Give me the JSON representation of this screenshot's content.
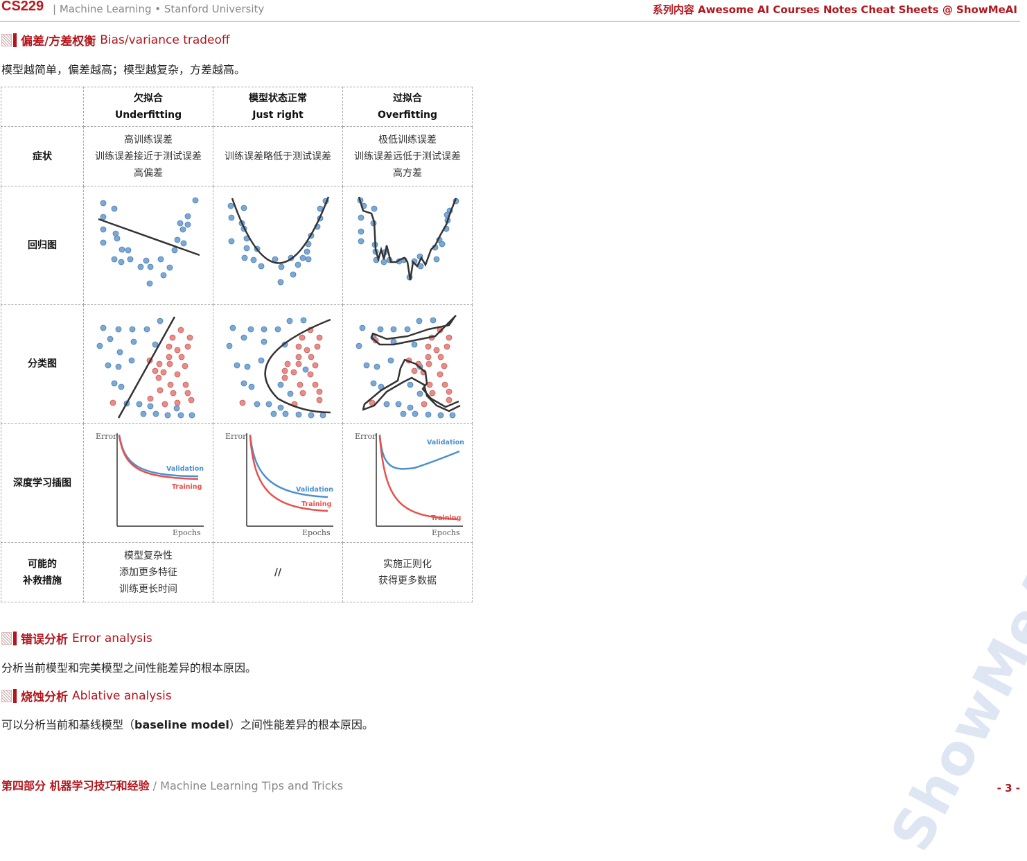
{
  "header": {
    "logo": "CS229",
    "subtitle": "| Machine Learning • Stanford University",
    "series": "系列内容  Awesome AI Courses Notes Cheat Sheets @ ShowMeAI"
  },
  "section1": {
    "title_cn": "偏差/方差权衡",
    "title_en": "Bias/variance tradeoff",
    "desc": "模型越简单，偏差越高；模型越复杂，方差越高。"
  },
  "table": {
    "columns": [
      {
        "cn": "欠拟合",
        "en": "Underfitting"
      },
      {
        "cn": "模型状态正常",
        "en": "Just right"
      },
      {
        "cn": "过拟合",
        "en": "Overfitting"
      }
    ],
    "rows": {
      "symptoms": {
        "label": "症状",
        "under": [
          "高训练误差",
          "训练误差接近于测试误差",
          "高偏差"
        ],
        "right": [
          "训练误差略低于测试误差"
        ],
        "over": [
          "极低训练误差",
          "训练误差远低于测试误差",
          "高方差"
        ]
      },
      "regression": {
        "label": "回归图"
      },
      "classification": {
        "label": "分类图"
      },
      "deep": {
        "label": "深度学习插图"
      },
      "remedies": {
        "label_line1": "可能的",
        "label_line2": "补救措施",
        "under": [
          "模型复杂性",
          "添加更多特征",
          "训练更长时间"
        ],
        "right": [
          "//"
        ],
        "over": [
          "实施正则化",
          "获得更多数据"
        ]
      }
    },
    "plot_labels": {
      "error": "Error",
      "epochs": "Epochs",
      "validation": "Validation",
      "training": "Training"
    }
  },
  "section2": {
    "title_cn": "错误分析",
    "title_en": "Error analysis",
    "desc": "分析当前模型和完美模型之间性能差异的根本原因。"
  },
  "section3": {
    "title_cn": "烧蚀分析",
    "title_en": "Ablative analysis",
    "desc_pre": "可以分析当前和基线模型（",
    "desc_bold": "baseline model",
    "desc_post": "）之间性能差异的根本原因。"
  },
  "footer": {
    "cn": "第四部分 机器学习技巧和经验",
    "en": " / Machine Learning Tips and Tricks",
    "page": "- 3 -"
  },
  "watermark": "ShowMeAI",
  "colors": {
    "accent": "#b3161d",
    "blue_point": "#7aa9d6",
    "red_point": "#ec8a86",
    "validation": "#4a90d0",
    "training": "#e8504b"
  }
}
